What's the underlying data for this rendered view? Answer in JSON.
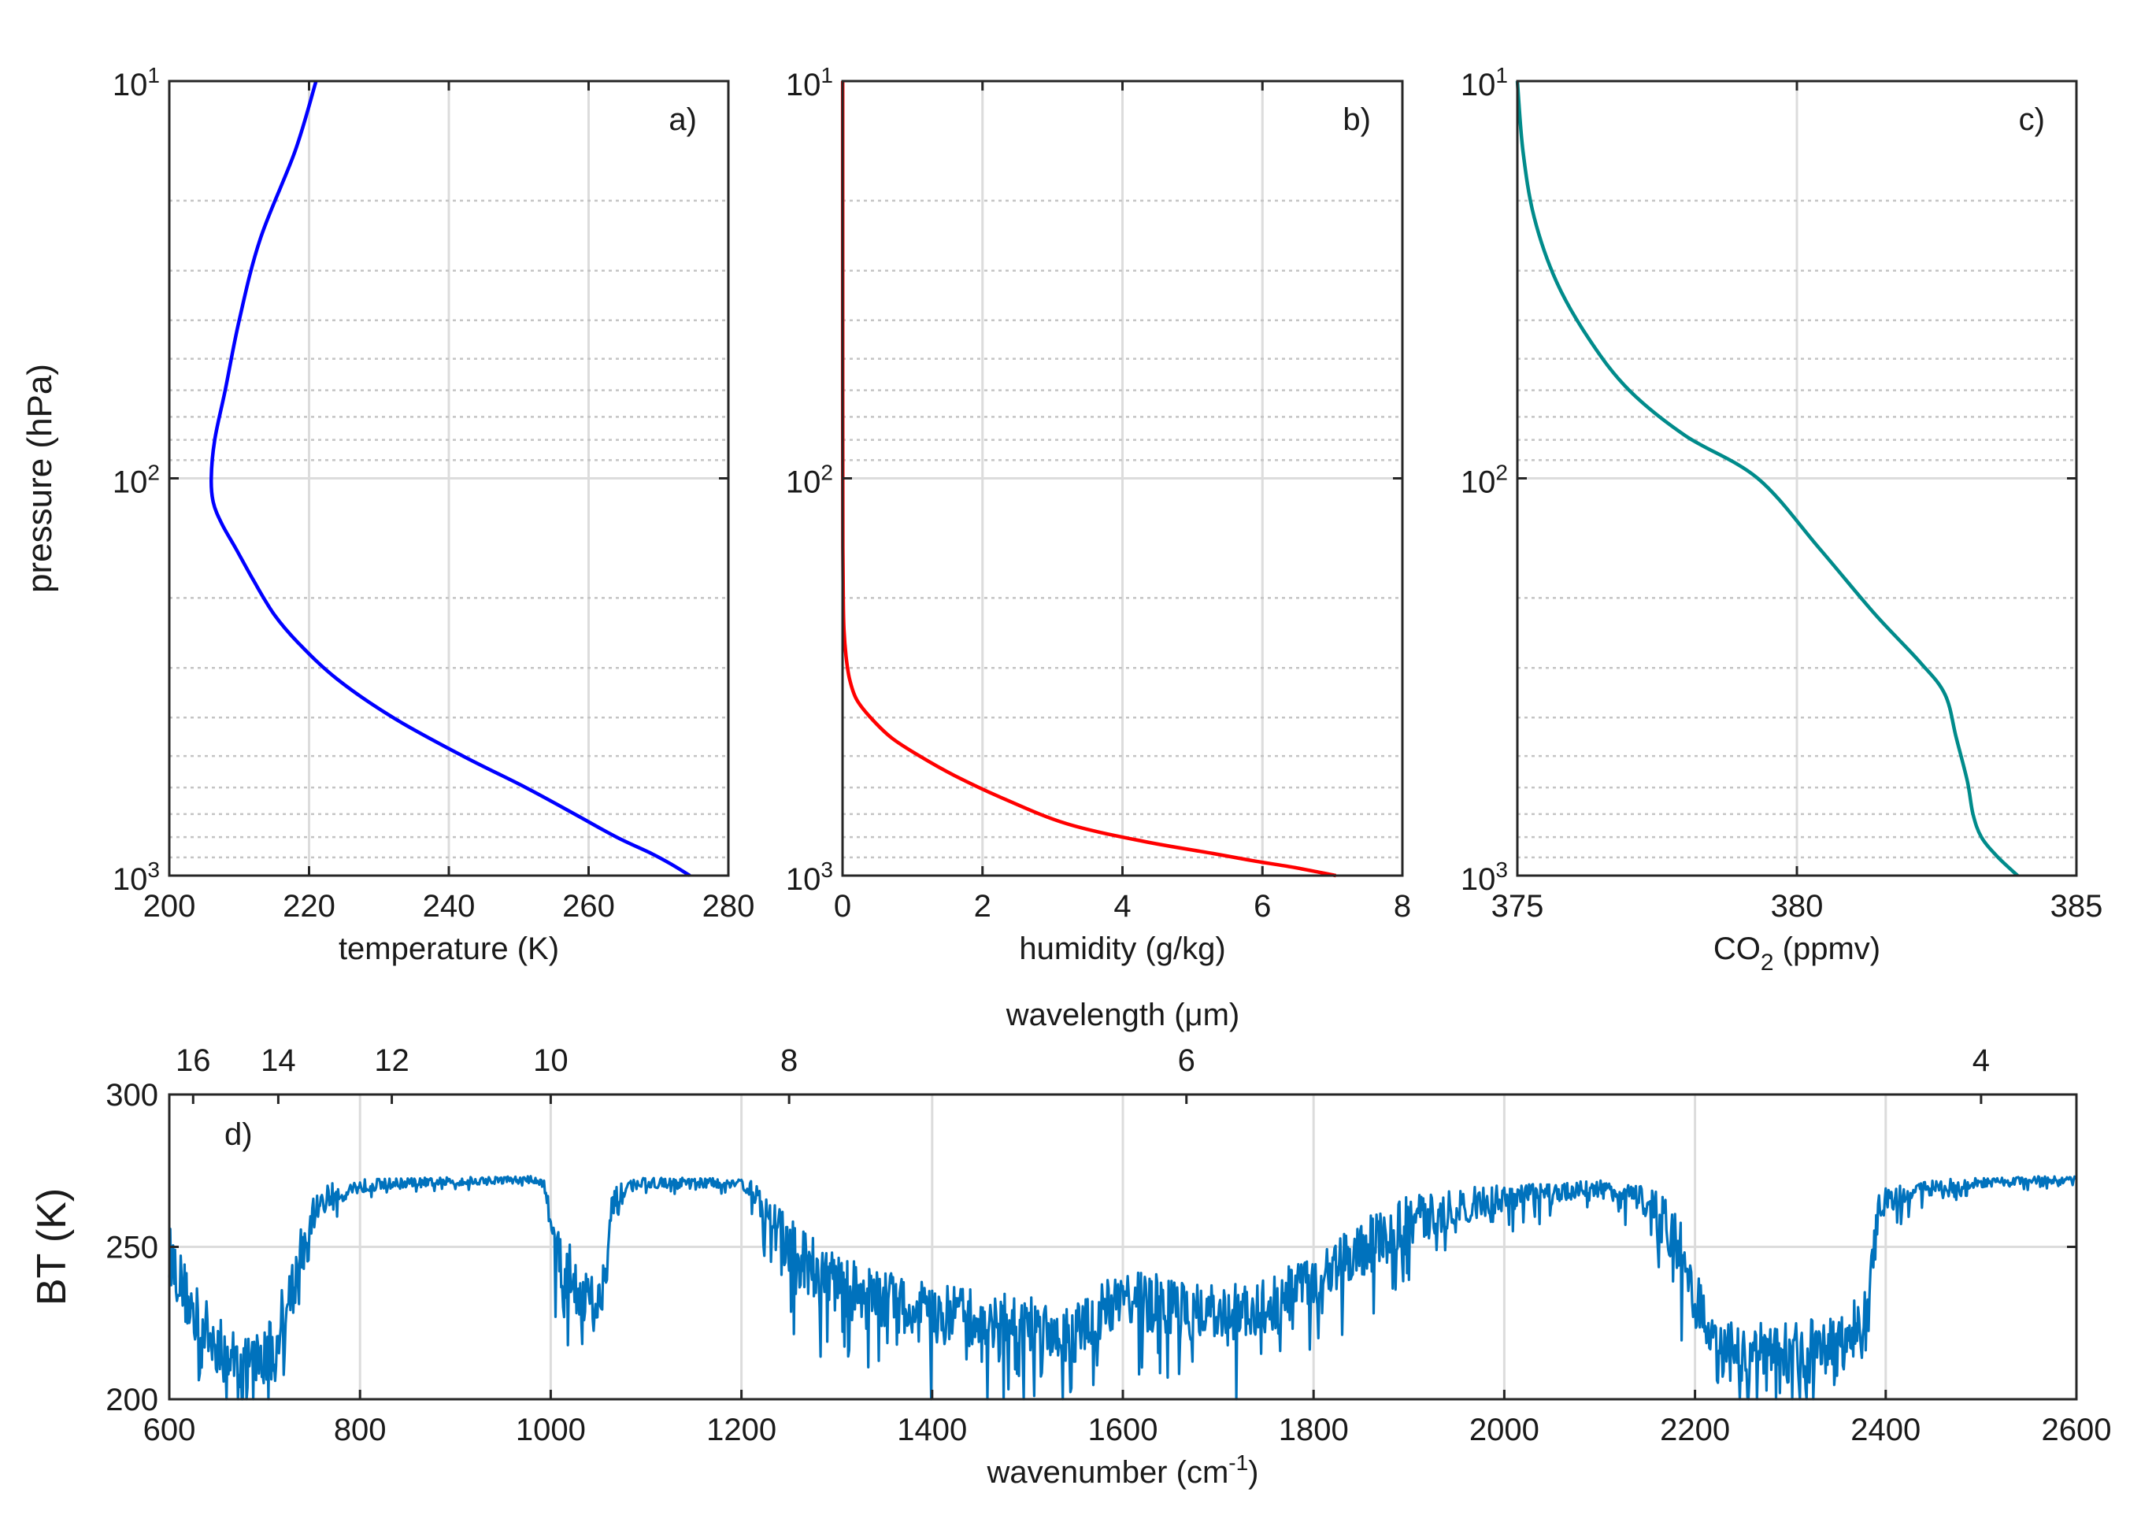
{
  "chart_data": [
    {
      "id": "a",
      "type": "line",
      "panel_label": "a)",
      "xlabel": "temperature (K)",
      "ylabel": "pressure (hPa)",
      "x_ticks": [
        "200",
        "220",
        "240",
        "260",
        "280"
      ],
      "y_ticks": [
        "10^1",
        "10^2",
        "10^3"
      ],
      "xlim": [
        200,
        280
      ],
      "ylim": [
        10,
        1000
      ],
      "yscale": "log",
      "yreversed": true,
      "color": "#0000ff",
      "x": [
        221,
        218,
        213,
        210,
        208,
        206.5,
        206,
        206.3,
        207.5,
        209.5,
        212,
        215,
        218.5,
        224,
        232,
        242,
        251,
        258,
        264,
        269,
        272,
        274.5
      ],
      "y": [
        10,
        15,
        25,
        40,
        60,
        80,
        100,
        115,
        130,
        150,
        180,
        220,
        260,
        320,
        400,
        500,
        600,
        700,
        800,
        880,
        940,
        1000
      ]
    },
    {
      "id": "b",
      "type": "line",
      "panel_label": "b)",
      "xlabel": "humidity (g/kg)",
      "x_ticks": [
        "0",
        "2",
        "4",
        "6",
        "8"
      ],
      "y_ticks": [
        "10^1",
        "10^2",
        "10^3"
      ],
      "xlim": [
        0,
        8
      ],
      "ylim": [
        10,
        1000
      ],
      "yscale": "log",
      "yreversed": true,
      "color": "#ff0000",
      "x": [
        0.002,
        0.002,
        0.002,
        0.003,
        0.005,
        0.01,
        0.02,
        0.05,
        0.1,
        0.2,
        0.4,
        0.7,
        1.1,
        1.6,
        2.3,
        3.2,
        4.3,
        5.3,
        5.9,
        6.4,
        6.8,
        7.05
      ],
      "y": [
        10,
        30,
        60,
        100,
        150,
        200,
        240,
        280,
        320,
        360,
        400,
        450,
        500,
        560,
        640,
        740,
        820,
        880,
        920,
        950,
        980,
        1000
      ]
    },
    {
      "id": "c",
      "type": "line",
      "panel_label": "c)",
      "xlabel": "CO_2 (ppmv)",
      "x_ticks": [
        "375",
        "380",
        "385"
      ],
      "y_ticks": [
        "10^1",
        "10^2",
        "10^3"
      ],
      "xlim": [
        375,
        385
      ],
      "ylim": [
        10,
        1000
      ],
      "yscale": "log",
      "yreversed": true,
      "color": "#008b8b",
      "x": [
        375,
        375.1,
        375.3,
        375.7,
        376.3,
        377,
        378,
        379.3,
        380.4,
        381.4,
        382.2,
        382.65,
        382.85,
        383.05,
        383.15,
        383.3,
        383.6,
        383.95
      ],
      "y": [
        10,
        15,
        22,
        32,
        45,
        60,
        78,
        100,
        150,
        220,
        290,
        350,
        450,
        580,
        700,
        800,
        900,
        1000
      ]
    },
    {
      "id": "d",
      "type": "line",
      "panel_label": "d)",
      "xlabel": "wavenumber (cm^-1)",
      "ylabel": "BT (K)",
      "top_label": "wavelength (μm)",
      "x_ticks": [
        "600",
        "800",
        "1000",
        "1200",
        "1400",
        "1600",
        "1800",
        "2000",
        "2200",
        "2400",
        "2600"
      ],
      "top_ticks": [
        "16",
        "14",
        "12",
        "10",
        "8",
        "6",
        "4"
      ],
      "top_tick_values": [
        16,
        14,
        12,
        10,
        8,
        6,
        4
      ],
      "y_ticks": [
        "200",
        "250",
        "300"
      ],
      "xlim": [
        600,
        2600
      ],
      "ylim": [
        200,
        300
      ],
      "color": "#0072bd",
      "x": [
        600,
        620,
        640,
        660,
        680,
        700,
        720,
        740,
        760,
        800,
        850,
        900,
        950,
        990,
        1000,
        1010,
        1030,
        1050,
        1065,
        1080,
        1100,
        1150,
        1200,
        1220,
        1250,
        1300,
        1350,
        1400,
        1450,
        1500,
        1550,
        1600,
        1650,
        1700,
        1750,
        1800,
        1850,
        1900,
        1950,
        2000,
        2050,
        2100,
        2150,
        2180,
        2200,
        2220,
        2250,
        2300,
        2350,
        2380,
        2390,
        2400,
        2450,
        2500,
        2550,
        2600
      ],
      "y": [
        248,
        232,
        222,
        214,
        212,
        214,
        228,
        248,
        266,
        270,
        271,
        271.5,
        272,
        272,
        262,
        246,
        236,
        230,
        262,
        270,
        271,
        271,
        271,
        266,
        250,
        238,
        232,
        228,
        226,
        224,
        222,
        234,
        230,
        227,
        230,
        240,
        250,
        258,
        263,
        266,
        268,
        269,
        266,
        254,
        234,
        218,
        215,
        215,
        218,
        226,
        258,
        266,
        270,
        271,
        272,
        272
      ],
      "noise_amplitude": 10
    }
  ]
}
